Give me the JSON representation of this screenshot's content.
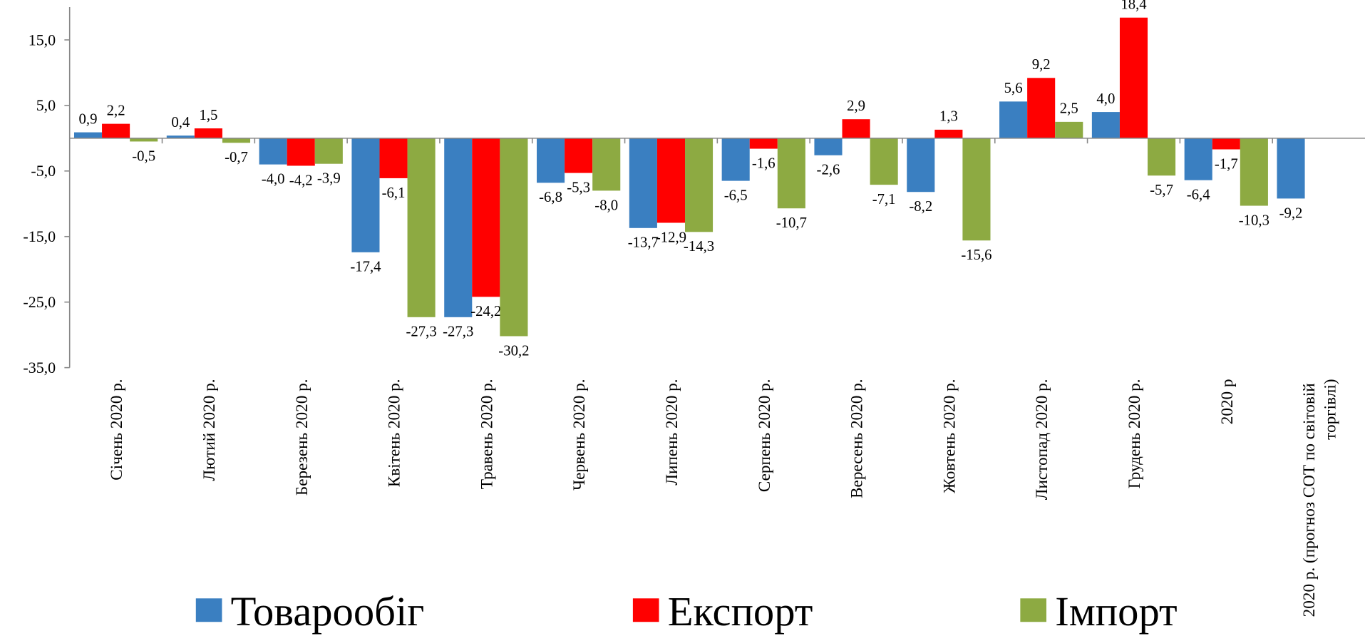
{
  "chart_data": {
    "type": "bar",
    "categories": [
      "Січень 2020 р.",
      "Лютий 2020 р.",
      "Березень 2020 р.",
      "Квітень 2020 р.",
      "Травень 2020 р.",
      "Червень 2020 р.",
      "Липень 2020 р.",
      "Серпень 2020 р.",
      "Вересень 2020 р.",
      "Жовтень 2020 р.",
      "Листопад 2020 р.",
      "Грудень 2020 р.",
      "2020 р",
      "2020 р. (прогноз СОТ по світовій торгівлі)"
    ],
    "series": [
      {
        "name": "Товарообіг",
        "color": "#3a7fc1",
        "values": [
          0.9,
          0.4,
          -4.0,
          -17.4,
          -27.3,
          -6.8,
          -13.7,
          -6.5,
          -2.6,
          -8.2,
          5.6,
          4.0,
          -6.4,
          -9.2
        ],
        "value_labels": [
          "0,9",
          "0,4",
          "-4,0",
          "-17,4",
          "-27,3",
          "-6,8",
          "-13,7",
          "-6,5",
          "-2,6",
          "-8,2",
          "5,6",
          "4,0",
          "-6,4",
          "-9,2"
        ]
      },
      {
        "name": "Експорт",
        "color": "#ff0000",
        "values": [
          2.2,
          1.5,
          -4.2,
          -6.1,
          -24.2,
          -5.3,
          -12.9,
          -1.6,
          2.9,
          1.3,
          9.2,
          18.4,
          -1.7,
          null
        ],
        "value_labels": [
          "2,2",
          "1,5",
          "-4,2",
          "-6,1",
          "-24,2",
          "-5,3",
          "-12,9",
          "-1,6",
          "2,9",
          "1,3",
          "9,2",
          "18,4",
          "-1,7",
          null
        ]
      },
      {
        "name": "Імпорт",
        "color": "#8daa42",
        "values": [
          -0.5,
          -0.7,
          -3.9,
          -27.3,
          -30.2,
          -8.0,
          -14.3,
          -10.7,
          -7.1,
          -15.6,
          2.5,
          -5.7,
          -10.3,
          null
        ],
        "value_labels": [
          "-0,5",
          "-0,7",
          "-3,9",
          "-27,3",
          "-30,2",
          "-8,0",
          "-14,3",
          "-10,7",
          "-7,1",
          "-15,6",
          "2,5",
          "-5,7",
          "-10,3",
          null
        ]
      }
    ],
    "ylim": [
      -35,
      20
    ],
    "yticks": [
      {
        "value": -35,
        "label": "-35,0"
      },
      {
        "value": -25,
        "label": "-25,0"
      },
      {
        "value": -15,
        "label": "-15,0"
      },
      {
        "value": -5,
        "label": "-5,0"
      },
      {
        "value": 5,
        "label": "5,0"
      },
      {
        "value": 15,
        "label": "15,0"
      }
    ],
    "legend": "bottom"
  }
}
